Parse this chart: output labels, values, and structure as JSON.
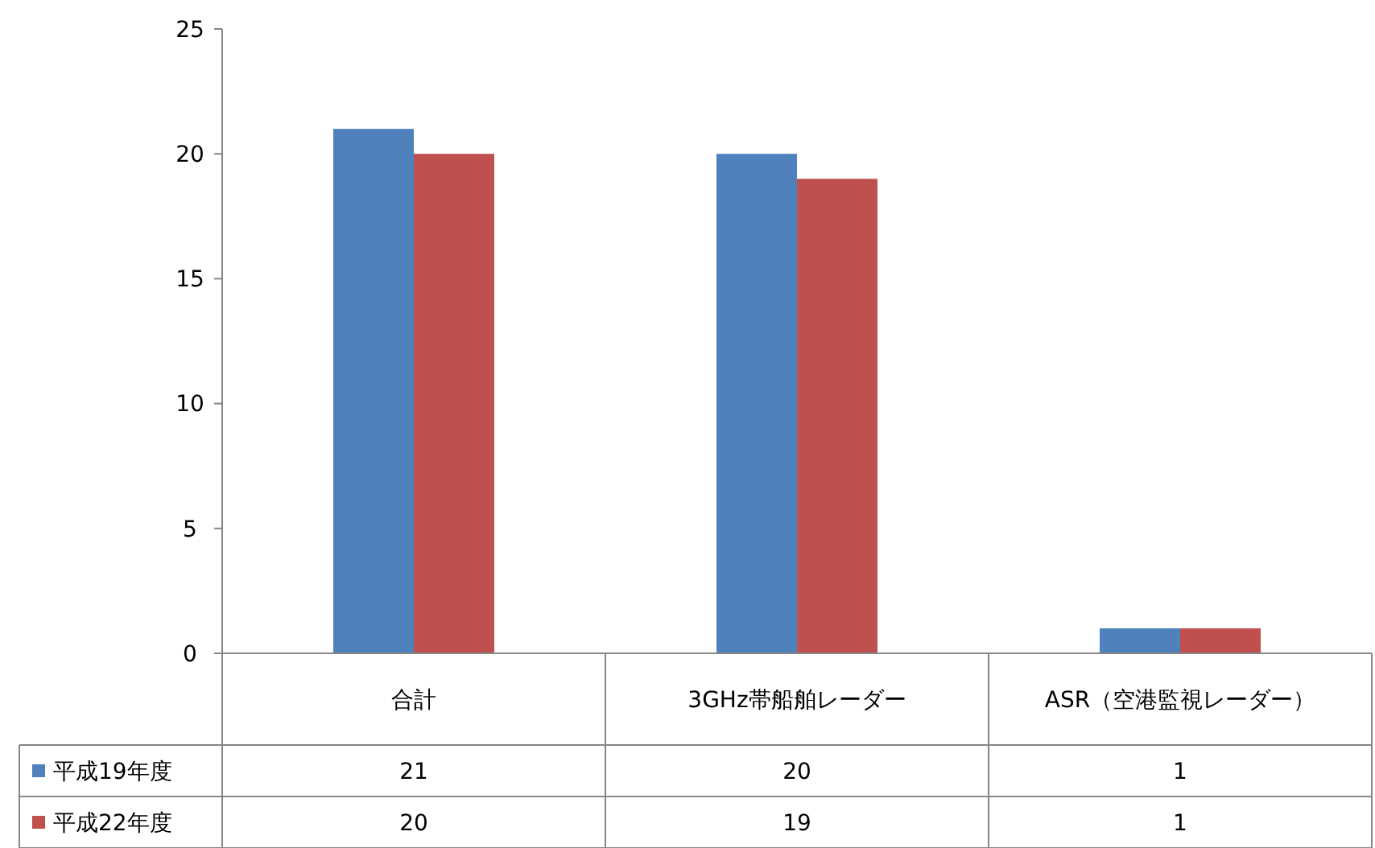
{
  "chart_data": {
    "type": "bar",
    "categories": [
      "合計",
      "3GHz帯船舶レーダー",
      "ASR（空港監視レーダー）"
    ],
    "series": [
      {
        "name": "平成19年度",
        "color": "#4f81bd",
        "values": [
          21,
          20,
          1
        ]
      },
      {
        "name": "平成22年度",
        "color": "#c0504d",
        "values": [
          20,
          19,
          1
        ]
      }
    ],
    "ylim": [
      0,
      25
    ],
    "yticks": [
      0,
      5,
      10,
      15,
      20,
      25
    ],
    "grid": false,
    "legend": "bottom",
    "data_labels": true
  }
}
